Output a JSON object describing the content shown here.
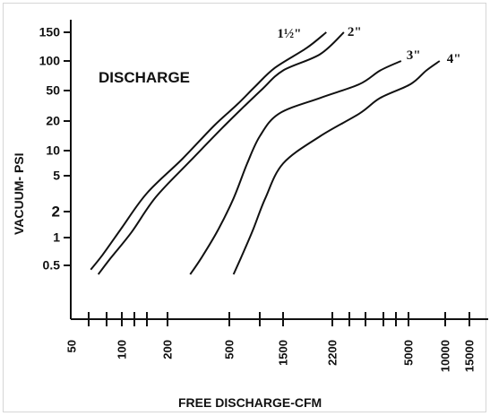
{
  "chart_data": {
    "type": "line",
    "title": "DISCHARGE",
    "xlabel": "FREE DISCHARGE-CFM",
    "ylabel": "VACUUM- PSI",
    "x_scale": "log",
    "y_scale": "log",
    "xlim": [
      50,
      15000
    ],
    "ylim": [
      0.5,
      150
    ],
    "x_ticks": [
      {
        "value": 50,
        "label": "50"
      },
      {
        "value": 100,
        "label": "100"
      },
      {
        "value": 200,
        "label": "200"
      },
      {
        "value": 500,
        "label": "500"
      },
      {
        "value": 1500,
        "label": "1500"
      },
      {
        "value": 2200,
        "label": "2200"
      },
      {
        "value": 5000,
        "label": "5000"
      },
      {
        "value": 10000,
        "label": "10000"
      },
      {
        "value": 15000,
        "label": "15000"
      }
    ],
    "x_minor_ticks": [
      60,
      80,
      120,
      150,
      1000,
      2500,
      3000,
      4000,
      4500
    ],
    "y_ticks": [
      {
        "value": 150,
        "label": "150"
      },
      {
        "value": 100,
        "label": "100"
      },
      {
        "value": 50,
        "label": "50"
      },
      {
        "value": 20,
        "label": "20"
      },
      {
        "value": 10,
        "label": "10"
      },
      {
        "value": 5,
        "label": "5"
      },
      {
        "value": 2,
        "label": "2"
      },
      {
        "value": 1,
        "label": "1"
      },
      {
        "value": 0.5,
        "label": "0.5"
      }
    ],
    "grid": false,
    "series": [
      {
        "name": "1½\"",
        "x": [
          62,
          75,
          100,
          150,
          250,
          400,
          600,
          900,
          1300,
          1800,
          2100
        ],
        "y": [
          0.45,
          0.65,
          1.3,
          3.2,
          8,
          18,
          33,
          55,
          85,
          120,
          150
        ]
      },
      {
        "name": "2\"",
        "x": [
          70,
          85,
          115,
          170,
          280,
          450,
          700,
          1050,
          1500,
          2000,
          2400
        ],
        "y": [
          0.4,
          0.6,
          1.15,
          2.9,
          7.5,
          17,
          31,
          52,
          80,
          110,
          150
        ]
      },
      {
        "name": "3\"",
        "x": [
          280,
          330,
          420,
          550,
          750,
          1000,
          1400,
          2000,
          2800,
          3800,
          4700
        ],
        "y": [
          0.4,
          0.6,
          1.2,
          2.8,
          7,
          14,
          25,
          40,
          58,
          80,
          100
        ]
      },
      {
        "name": "4\"",
        "x": [
          550,
          650,
          850,
          1100,
          1500,
          2000,
          2800,
          3800,
          5200,
          7000,
          9000
        ],
        "y": [
          0.4,
          0.6,
          1.2,
          2.8,
          7,
          14,
          25,
          40,
          58,
          80,
          100
        ]
      }
    ]
  }
}
